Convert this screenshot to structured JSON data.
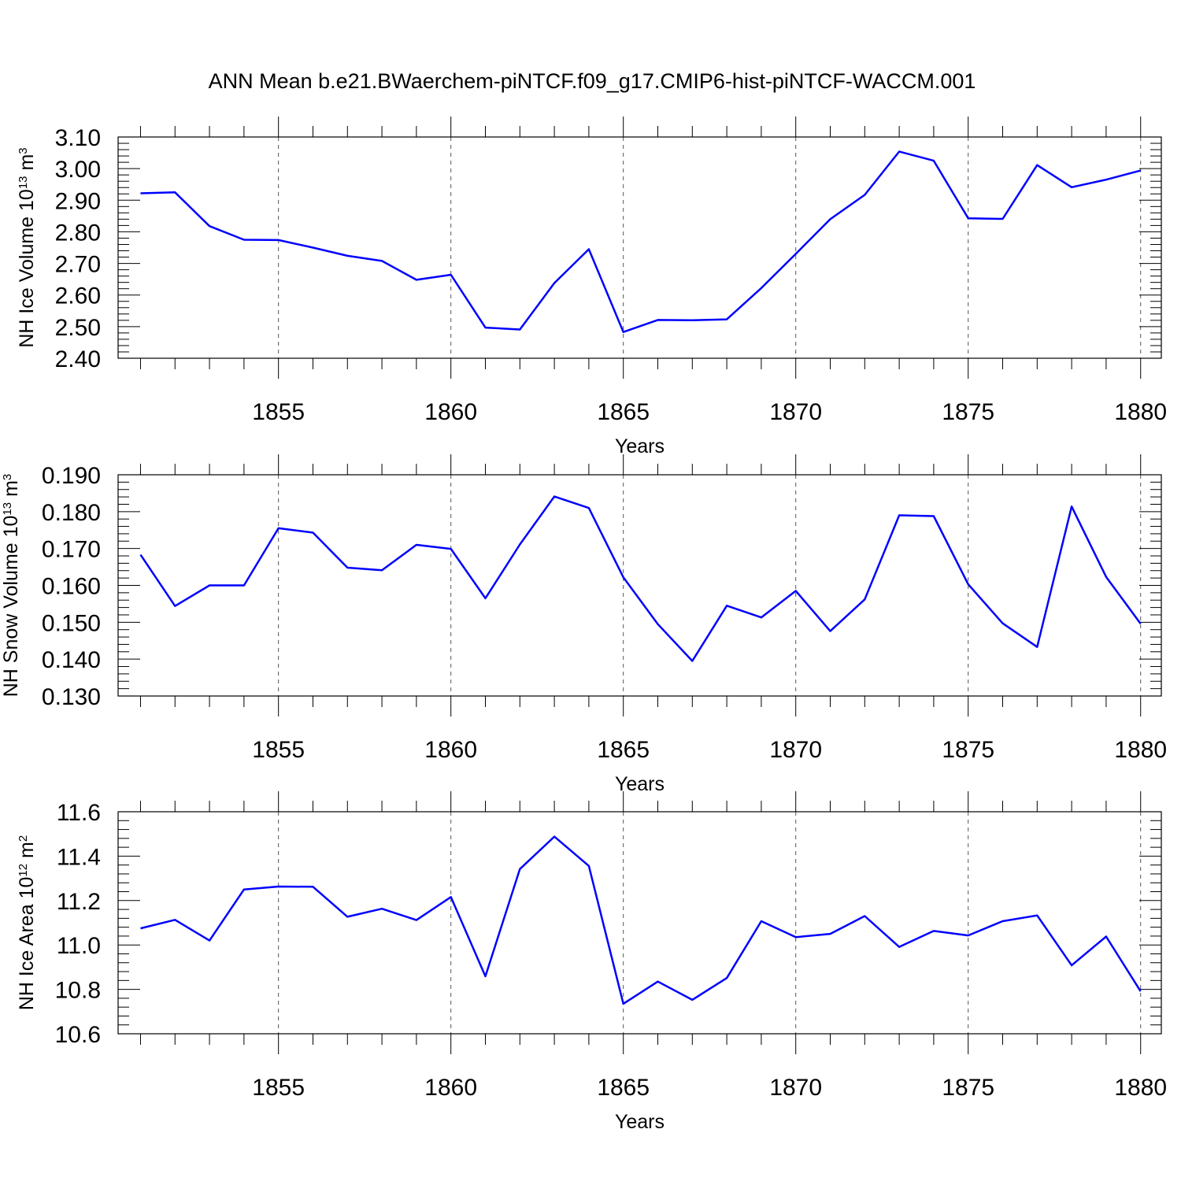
{
  "figure": {
    "title": "ANN Mean b.e21.BWaerchem-piNTCF.f09_g17.CMIP6-hist-piNTCF-WACCM.001"
  },
  "colors": {
    "series": "#0000ff",
    "axes": "#000000",
    "grid": "#555555"
  },
  "chart_data": [
    {
      "type": "line",
      "ylabel": {
        "prefix": "NH Ice Volume 10",
        "exp": "13",
        "unit": " m",
        "unit_exp": "3"
      },
      "xlabel": "Years",
      "xlim": [
        1851,
        1880
      ],
      "ylim": [
        2.4,
        3.1
      ],
      "y_ticks": [
        2.4,
        2.5,
        2.6,
        2.7,
        2.8,
        2.9,
        3.0,
        3.1
      ],
      "y_tick_labels": [
        "2.40",
        "2.50",
        "2.60",
        "2.70",
        "2.80",
        "2.90",
        "3.00",
        "3.10"
      ],
      "x_ticks": [
        1855,
        1860,
        1865,
        1870,
        1875,
        1880
      ],
      "x_tick_labels": [
        "1855",
        "1860",
        "1865",
        "1870",
        "1875",
        "1880"
      ],
      "grid": "vertical dashed at labeled years",
      "x": [
        1851,
        1852,
        1853,
        1854,
        1855,
        1856,
        1857,
        1858,
        1859,
        1860,
        1861,
        1862,
        1863,
        1864,
        1865,
        1866,
        1867,
        1868,
        1869,
        1870,
        1871,
        1872,
        1873,
        1874,
        1875,
        1876,
        1877,
        1878,
        1879,
        1880
      ],
      "values": [
        2.922,
        2.925,
        2.818,
        2.775,
        2.774,
        2.75,
        2.724,
        2.708,
        2.648,
        2.664,
        2.497,
        2.491,
        2.638,
        2.745,
        2.483,
        2.521,
        2.52,
        2.523,
        2.622,
        2.73,
        2.84,
        2.917,
        3.054,
        3.025,
        2.843,
        2.841,
        3.011,
        2.941,
        2.965,
        2.994
      ]
    },
    {
      "type": "line",
      "ylabel": {
        "prefix": "NH Snow Volume 10",
        "exp": "13",
        "unit": " m",
        "unit_exp": "3"
      },
      "xlabel": "Years",
      "xlim": [
        1851,
        1880
      ],
      "ylim": [
        0.13,
        0.19
      ],
      "y_ticks": [
        0.13,
        0.14,
        0.15,
        0.16,
        0.17,
        0.18,
        0.19
      ],
      "y_tick_labels": [
        "0.130",
        "0.140",
        "0.150",
        "0.160",
        "0.170",
        "0.180",
        "0.190"
      ],
      "x_ticks": [
        1855,
        1860,
        1865,
        1870,
        1875,
        1880
      ],
      "x_tick_labels": [
        "1855",
        "1860",
        "1865",
        "1870",
        "1875",
        "1880"
      ],
      "grid": "vertical dashed at labeled years",
      "x": [
        1851,
        1852,
        1853,
        1854,
        1855,
        1856,
        1857,
        1858,
        1859,
        1860,
        1861,
        1862,
        1863,
        1864,
        1865,
        1866,
        1867,
        1868,
        1869,
        1870,
        1871,
        1872,
        1873,
        1874,
        1875,
        1876,
        1877,
        1878,
        1879,
        1880
      ],
      "values": [
        0.1683,
        0.1544,
        0.16,
        0.16,
        0.1755,
        0.1743,
        0.1648,
        0.1641,
        0.171,
        0.1699,
        0.1565,
        0.1711,
        0.1841,
        0.181,
        0.1622,
        0.1495,
        0.1395,
        0.1545,
        0.1513,
        0.1585,
        0.1476,
        0.1562,
        0.179,
        0.1788,
        0.1603,
        0.1497,
        0.1433,
        0.1814,
        0.1623,
        0.1496
      ]
    },
    {
      "type": "line",
      "ylabel": {
        "prefix": "NH Ice Area 10",
        "exp": "12",
        "unit": " m",
        "unit_exp": "2"
      },
      "xlabel": "Years",
      "xlim": [
        1851,
        1880
      ],
      "ylim": [
        10.6,
        11.6
      ],
      "y_ticks": [
        10.6,
        10.8,
        11.0,
        11.2,
        11.4,
        11.6
      ],
      "y_tick_labels": [
        "10.6",
        "10.8",
        "11.0",
        "11.2",
        "11.4",
        "11.6"
      ],
      "x_ticks": [
        1855,
        1860,
        1865,
        1870,
        1875,
        1880
      ],
      "x_tick_labels": [
        "1855",
        "1860",
        "1865",
        "1870",
        "1875",
        "1880"
      ],
      "grid": "vertical dashed at labeled years",
      "x": [
        1851,
        1852,
        1853,
        1854,
        1855,
        1856,
        1857,
        1858,
        1859,
        1860,
        1861,
        1862,
        1863,
        1864,
        1865,
        1866,
        1867,
        1868,
        1869,
        1870,
        1871,
        1872,
        1873,
        1874,
        1875,
        1876,
        1877,
        1878,
        1879,
        1880
      ],
      "values": [
        11.075,
        11.113,
        11.02,
        11.25,
        11.263,
        11.262,
        11.127,
        11.163,
        11.112,
        11.216,
        10.859,
        11.342,
        11.488,
        11.356,
        10.735,
        10.835,
        10.753,
        10.851,
        11.107,
        11.035,
        11.05,
        11.13,
        10.991,
        11.063,
        11.043,
        11.107,
        11.133,
        10.908,
        11.038,
        10.791
      ]
    }
  ]
}
